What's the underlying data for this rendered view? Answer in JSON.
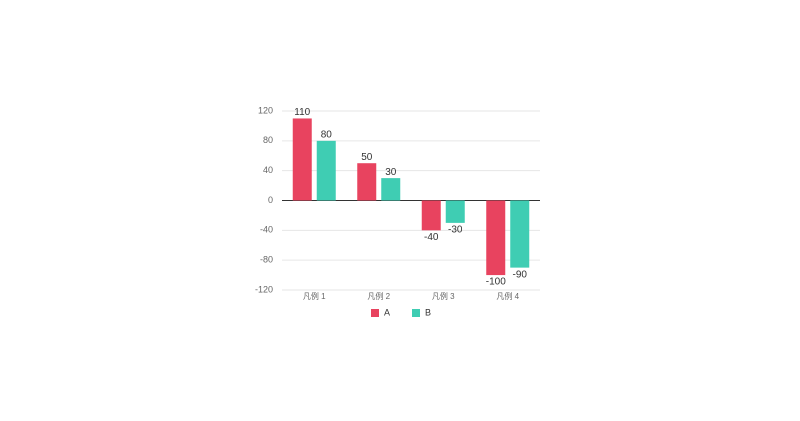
{
  "chart_data": {
    "type": "bar",
    "categories": [
      "凡例 1",
      "凡例 2",
      "凡例 3",
      "凡例 4"
    ],
    "series": [
      {
        "name": "A",
        "color": "#e8435f",
        "values": [
          110,
          50,
          -40,
          -100
        ]
      },
      {
        "name": "B",
        "color": "#3fcdb3",
        "values": [
          80,
          30,
          -30,
          -90
        ]
      }
    ],
    "ylim": [
      -120,
      120
    ],
    "yticks": [
      -120,
      -80,
      -40,
      0,
      40,
      80,
      120
    ],
    "grid": true,
    "legend": "bottom",
    "data_labels": true
  }
}
